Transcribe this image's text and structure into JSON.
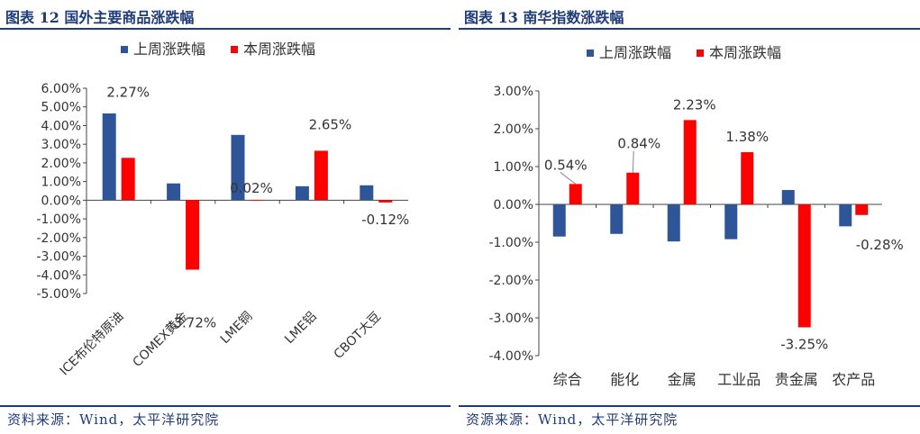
{
  "left": {
    "fig_title": "图表 12 国外主要商品涨跌幅",
    "source": "资料来源：Wind，太平洋研究院"
  },
  "right": {
    "fig_title": "图表 13 南华指数涨跌幅",
    "source": "资源来源：Wind，太平洋研究院"
  },
  "colors": {
    "last_week": "#2e5597",
    "this_week": "#ff0000",
    "title": "#1f3c7a"
  },
  "chart_data": [
    {
      "type": "bar",
      "title": "",
      "categories": [
        "ICE布伦特原油",
        "COMEX黄金",
        "LME铜",
        "LME铝",
        "CBOT大豆"
      ],
      "series": [
        {
          "name": "上周涨跌幅",
          "values": [
            4.65,
            0.9,
            3.5,
            0.75,
            0.8
          ]
        },
        {
          "name": "本周涨跌幅",
          "values": [
            2.27,
            -3.72,
            0.02,
            2.65,
            -0.12
          ]
        }
      ],
      "data_labels": [
        "2.27%",
        "-3.72%",
        "0.02%",
        "2.65%",
        "-0.12%"
      ],
      "y_ticks": [
        "6.00%",
        "5.00%",
        "4.00%",
        "3.00%",
        "2.00%",
        "1.00%",
        "0.00%",
        "-1.00%",
        "-2.00%",
        "-3.00%",
        "-4.00%",
        "-5.00%"
      ],
      "ylim": [
        -5,
        6
      ],
      "legend": "top-left",
      "grid": false
    },
    {
      "type": "bar",
      "title": "",
      "categories": [
        "综合",
        "能化",
        "金属",
        "工业品",
        "贵金属",
        "农产品"
      ],
      "series": [
        {
          "name": "上周涨跌幅",
          "values": [
            -0.85,
            -0.78,
            -0.98,
            -0.92,
            0.38,
            -0.58
          ]
        },
        {
          "name": "本周涨跌幅",
          "values": [
            0.54,
            0.84,
            2.23,
            1.38,
            -3.25,
            -0.28
          ]
        }
      ],
      "data_labels": [
        "0.54%",
        "0.84%",
        "2.23%",
        "1.38%",
        "-3.25%",
        "-0.28%"
      ],
      "y_ticks": [
        "3.00%",
        "2.00%",
        "1.00%",
        "0.00%",
        "-1.00%",
        "-2.00%",
        "-3.00%",
        "-4.00%"
      ],
      "ylim": [
        -4,
        3
      ],
      "legend": "top-left",
      "grid": false
    }
  ]
}
